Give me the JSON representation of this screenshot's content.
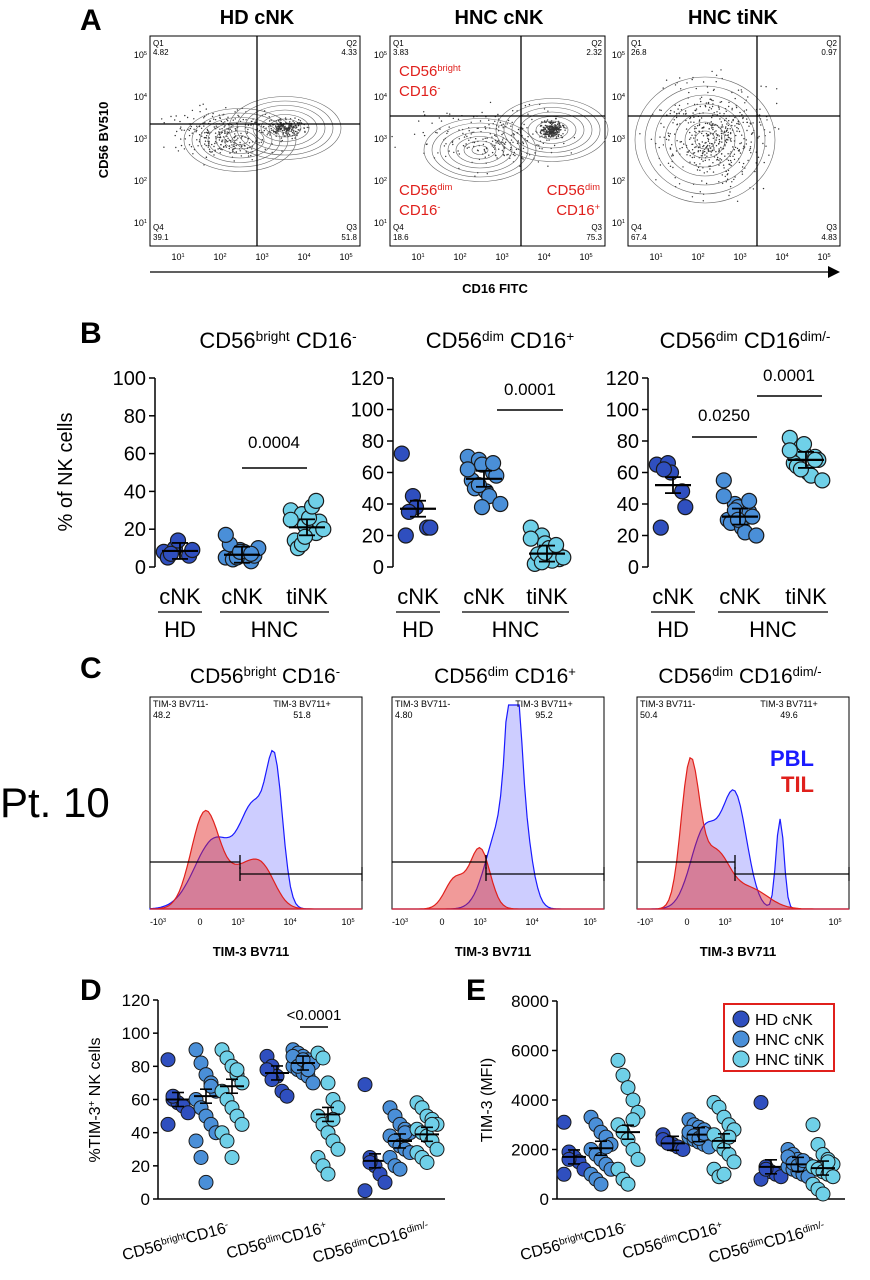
{
  "panel_letters": [
    "A",
    "B",
    "C",
    "D",
    "E"
  ],
  "panel_a": {
    "titles": [
      "HD cNK",
      "HNC cNK",
      "HNC tiNK"
    ],
    "y_axis_label": "CD56 BV510",
    "x_axis_label": "CD16 FITC",
    "tick_exp": [
      "10",
      "1",
      "2",
      "3",
      "4",
      "5"
    ],
    "plots": [
      {
        "q1": "Q1",
        "q1v": "4.82",
        "q2": "Q2",
        "q2v": "4.33",
        "q3": "Q3",
        "q3v": "51.8",
        "q4": "Q4",
        "q4v": "39.1"
      },
      {
        "q1": "Q1",
        "q1v": "3.83",
        "q2": "Q2",
        "q2v": "2.32",
        "q3": "Q3",
        "q3v": "75.3",
        "q4": "Q4",
        "q4v": "18.6"
      },
      {
        "q1": "Q1",
        "q1v": "26.8",
        "q2": "Q2",
        "q2v": "0.97",
        "q3": "Q3",
        "q3v": "4.83",
        "q4": "Q4",
        "q4v": "67.4"
      }
    ],
    "gate_labels": {
      "bright": {
        "base": "CD56",
        "sup": "bright",
        "line2": "CD16",
        "line2sup": "-"
      },
      "dim_neg": {
        "base": "CD56",
        "sup": "dim",
        "line2": "CD16",
        "line2sup": "-"
      },
      "dim_pos": {
        "base": "CD56",
        "sup": "dim",
        "line2": "CD16",
        "line2sup": "+"
      }
    }
  },
  "panel_b": {
    "ylabel": "% of NK cells",
    "group_labels": {
      "cnk": "cNK",
      "tink": "tiNK",
      "hd": "HD",
      "hnc": "HNC"
    },
    "titles": [
      {
        "base1": "CD56",
        "sup1": "bright",
        "base2": " CD16",
        "sup2": "-"
      },
      {
        "base1": "CD56",
        "sup1": "dim",
        "base2": " CD16",
        "sup2": "+"
      },
      {
        "base1": "CD56",
        "sup1": "dim",
        "base2": " CD16",
        "sup2": "dim/-"
      }
    ],
    "pvalues": [
      "0.0004",
      "0.0001",
      "0.0250",
      "0.0001"
    ],
    "yticks1": [
      "0",
      "20",
      "40",
      "60",
      "80",
      "100"
    ],
    "yticks2": [
      "0",
      "20",
      "40",
      "60",
      "80",
      "100",
      "120"
    ]
  },
  "panel_c": {
    "row_label": "Pt. 10",
    "xlabel": "TIM-3 BV711",
    "legend": [
      {
        "label": "PBL",
        "color": "#1a1aff"
      },
      {
        "label": "TIL",
        "color": "#e0201c"
      }
    ],
    "titles": [
      {
        "base1": "CD56",
        "sup1": "bright",
        "base2": " CD16",
        "sup2": "-"
      },
      {
        "base1": "CD56",
        "sup1": "dim",
        "base2": " CD16",
        "sup2": "+"
      },
      {
        "base1": "CD56",
        "sup1": "dim",
        "base2": " CD16",
        "sup2": "dim/-"
      }
    ],
    "gates": [
      {
        "neg": "TIM-3 BV711-",
        "negv": "48.2",
        "pos": "TIM-3 BV711+",
        "posv": "51.8"
      },
      {
        "neg": "TIM-3 BV711-",
        "negv": "4.80",
        "pos": "TIM-3 BV711+",
        "posv": "95.2"
      },
      {
        "neg": "TIM-3 BV711-",
        "negv": "50.4",
        "pos": "TIM-3 BV711+",
        "posv": "49.6"
      }
    ]
  },
  "panel_d": {
    "ylabel": "%TIM-3",
    "ylabel_sup": "+",
    "ylabel_rest": " NK cells",
    "yticks": [
      "0",
      "20",
      "40",
      "60",
      "80",
      "100",
      "120"
    ],
    "pvalue": "<0.0001",
    "xcats": [
      {
        "a": "CD56",
        "as": "bright",
        "b": "CD16",
        "bs": "-"
      },
      {
        "a": "CD56",
        "as": "dim",
        "b": "CD16",
        "bs": "+"
      },
      {
        "a": "CD56",
        "as": "dim",
        "b": "CD16",
        "bs": "dim/-"
      }
    ]
  },
  "panel_e": {
    "ylabel": "TIM-3 (MFI)",
    "yticks": [
      "0",
      "2000",
      "4000",
      "6000",
      "8000"
    ],
    "legend": [
      {
        "label": "HD    cNK",
        "color": "#2f4fbf"
      },
      {
        "label": "HNC cNK",
        "color": "#4a8fd8"
      },
      {
        "label": "HNC tiNK",
        "color": "#6fd0e8"
      }
    ],
    "legend_border": "#e0201c"
  },
  "chart_data": [
    {
      "type": "scatter",
      "title": "CD56bright CD16-",
      "ylabel": "% of NK cells",
      "ylim": [
        0,
        100
      ],
      "categories": [
        "HD cNK",
        "HNC cNK",
        "HNC tiNK"
      ],
      "series": [
        {
          "name": "HD cNK",
          "values": [
            8,
            10,
            14,
            6,
            9,
            5,
            7
          ],
          "mean": 8.5
        },
        {
          "name": "HNC cNK",
          "values": [
            5,
            7,
            9,
            3,
            6,
            12,
            4,
            8,
            6,
            10,
            17,
            5,
            8,
            7
          ],
          "mean": 6.5
        },
        {
          "name": "HNC tiNK",
          "values": [
            30,
            28,
            22,
            18,
            24,
            14,
            10,
            26,
            32,
            20,
            25,
            12,
            16,
            35
          ],
          "mean": 21
        }
      ]
    },
    {
      "type": "scatter",
      "title": "CD56dim CD16+",
      "ylabel": "% of NK cells",
      "ylim": [
        0,
        120
      ],
      "categories": [
        "HD cNK",
        "HNC cNK",
        "HNC tiNK"
      ],
      "series": [
        {
          "name": "HD cNK",
          "values": [
            72,
            45,
            38,
            25,
            25,
            20,
            35
          ],
          "mean": 37
        },
        {
          "name": "HNC cNK",
          "values": [
            70,
            68,
            65,
            60,
            58,
            55,
            50,
            48,
            45,
            40,
            62,
            52,
            38,
            66
          ],
          "mean": 56
        },
        {
          "name": "HNC tiNK",
          "values": [
            25,
            20,
            15,
            10,
            5,
            2,
            8,
            12,
            4,
            6,
            18,
            3,
            9,
            14
          ],
          "mean": 8.5
        }
      ]
    },
    {
      "type": "scatter",
      "title": "CD56dim CD16dim/-",
      "ylabel": "% of NK cells",
      "ylim": [
        0,
        120
      ],
      "categories": [
        "HD cNK",
        "HNC cNK",
        "HNC tiNK"
      ],
      "series": [
        {
          "name": "HD cNK",
          "values": [
            65,
            66,
            60,
            48,
            38,
            25,
            62
          ],
          "mean": 52
        },
        {
          "name": "HNC cNK",
          "values": [
            55,
            40,
            38,
            35,
            32,
            30,
            28,
            25,
            22,
            20,
            45,
            36,
            30,
            42
          ],
          "mean": 32
        },
        {
          "name": "HNC tiNK",
          "values": [
            82,
            76,
            72,
            70,
            68,
            66,
            64,
            60,
            58,
            55,
            74,
            62,
            78,
            68
          ],
          "mean": 68
        }
      ]
    },
    {
      "type": "scatter",
      "title": "",
      "ylabel": "%TIM-3+ NK cells",
      "ylim": [
        0,
        120
      ],
      "categories": [
        "CD56bright CD16-",
        "CD56dim CD16+",
        "CD56dim CD16dim/-"
      ],
      "series": [
        {
          "name": "HD cNK",
          "values": [
            [
              84,
              60,
              58,
              56,
              52,
              45,
              62
            ],
            [
              86,
              80,
              74,
              65,
              62,
              78,
              72
            ],
            [
              69,
              25,
              20,
              15,
              10,
              5,
              22
            ]
          ],
          "means": [
            60,
            76,
            23
          ]
        },
        {
          "name": "HNC cNK",
          "values": [
            [
              90,
              82,
              75,
              70,
              65,
              60,
              55,
              50,
              45,
              40,
              35,
              25,
              10,
              68
            ],
            [
              90,
              88,
              86,
              84,
              82,
              80,
              78,
              76,
              74,
              70,
              86,
              80,
              84,
              78
            ],
            [
              55,
              50,
              45,
              42,
              40,
              38,
              35,
              32,
              30,
              28,
              25,
              20,
              18,
              40
            ]
          ],
          "means": [
            62,
            82,
            35
          ]
        },
        {
          "name": "HNC tiNK",
          "values": [
            [
              90,
              85,
              80,
              75,
              70,
              65,
              60,
              55,
              50,
              45,
              40,
              35,
              25,
              78
            ],
            [
              88,
              85,
              70,
              60,
              55,
              50,
              45,
              40,
              35,
              30,
              25,
              20,
              15,
              48
            ],
            [
              58,
              55,
              50,
              48,
              45,
              42,
              40,
              38,
              35,
              30,
              28,
              25,
              22,
              45
            ]
          ],
          "means": [
            68,
            51,
            39
          ]
        }
      ]
    },
    {
      "type": "scatter",
      "title": "",
      "ylabel": "TIM-3 (MFI)",
      "ylim": [
        0,
        8000
      ],
      "categories": [
        "CD56bright CD16-",
        "CD56dim CD16+",
        "CD56dim CD16dim/-"
      ],
      "series": [
        {
          "name": "HD cNK",
          "values": [
            [
              3100,
              1900,
              1700,
              1500,
              1200,
              1000,
              1600
            ],
            [
              2600,
              2300,
              2200,
              2100,
              2000,
              2400,
              2250
            ],
            [
              3900,
              1300,
              1100,
              1000,
              900,
              800,
              1200
            ]
          ],
          "means": [
            1700,
            2250,
            1300
          ]
        },
        {
          "name": "HNC cNK",
          "values": [
            [
              3300,
              3000,
              2700,
              2500,
              2200,
              2000,
              1800,
              1600,
              1400,
              1200,
              1000,
              800,
              600,
              2100
            ],
            [
              3200,
              3000,
              2900,
              2800,
              2600,
              2500,
              2400,
              2300,
              2200,
              2100,
              2700,
              2550,
              2450,
              2650
            ],
            [
              2000,
              1800,
              1600,
              1500,
              1400,
              1300,
              1200,
              1100,
              1000,
              900,
              1700,
              1450,
              1350,
              1550
            ]
          ],
          "means": [
            2050,
            2600,
            1400
          ]
        },
        {
          "name": "HNC tiNK",
          "values": [
            [
              5600,
              5000,
              4500,
              4000,
              3500,
              3000,
              2700,
              2400,
              2000,
              1600,
              1200,
              800,
              600,
              3200
            ],
            [
              3900,
              3700,
              3300,
              3000,
              2800,
              2600,
              2200,
              2000,
              1800,
              1500,
              1200,
              900,
              1000,
              2500
            ],
            [
              3000,
              2200,
              1800,
              1600,
              1400,
              1300,
              1200,
              1100,
              1000,
              900,
              600,
              400,
              200,
              1500
            ]
          ],
          "means": [
            2700,
            2350,
            1250
          ]
        }
      ]
    }
  ]
}
